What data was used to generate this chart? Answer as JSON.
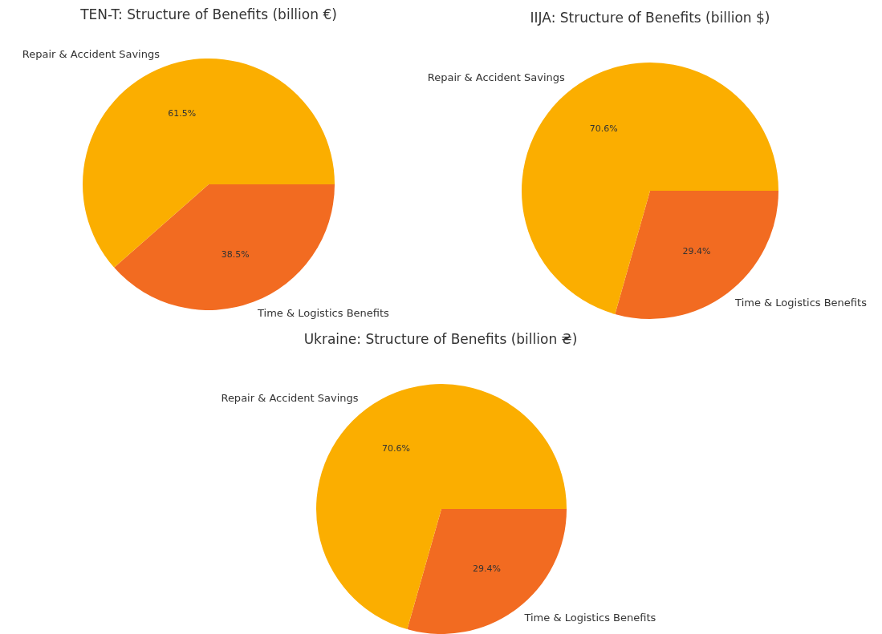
{
  "chart_data": [
    {
      "type": "pie",
      "title": "TEN-T: Structure of Benefits (billion €)",
      "categories": [
        "Repair & Accident Savings",
        "Time & Logistics Benefits"
      ],
      "values": [
        61.5,
        38.5
      ],
      "colors": [
        "#fbae00",
        "#f26b21"
      ],
      "value_labels": [
        "61.5%",
        "38.5%"
      ]
    },
    {
      "type": "pie",
      "title": "IIJA: Structure of Benefits (billion $)",
      "categories": [
        "Repair & Accident Savings",
        "Time & Logistics Benefits"
      ],
      "values": [
        70.6,
        29.4
      ],
      "colors": [
        "#fbae00",
        "#f26b21"
      ],
      "value_labels": [
        "70.6%",
        "29.4%"
      ]
    },
    {
      "type": "pie",
      "title": "Ukraine: Structure of Benefits (billion ₴)",
      "categories": [
        "Repair & Accident Savings",
        "Time & Logistics Benefits"
      ],
      "values": [
        70.6,
        29.4
      ],
      "colors": [
        "#fbae00",
        "#f26b21"
      ],
      "value_labels": [
        "70.6%",
        "29.4%"
      ]
    }
  ]
}
